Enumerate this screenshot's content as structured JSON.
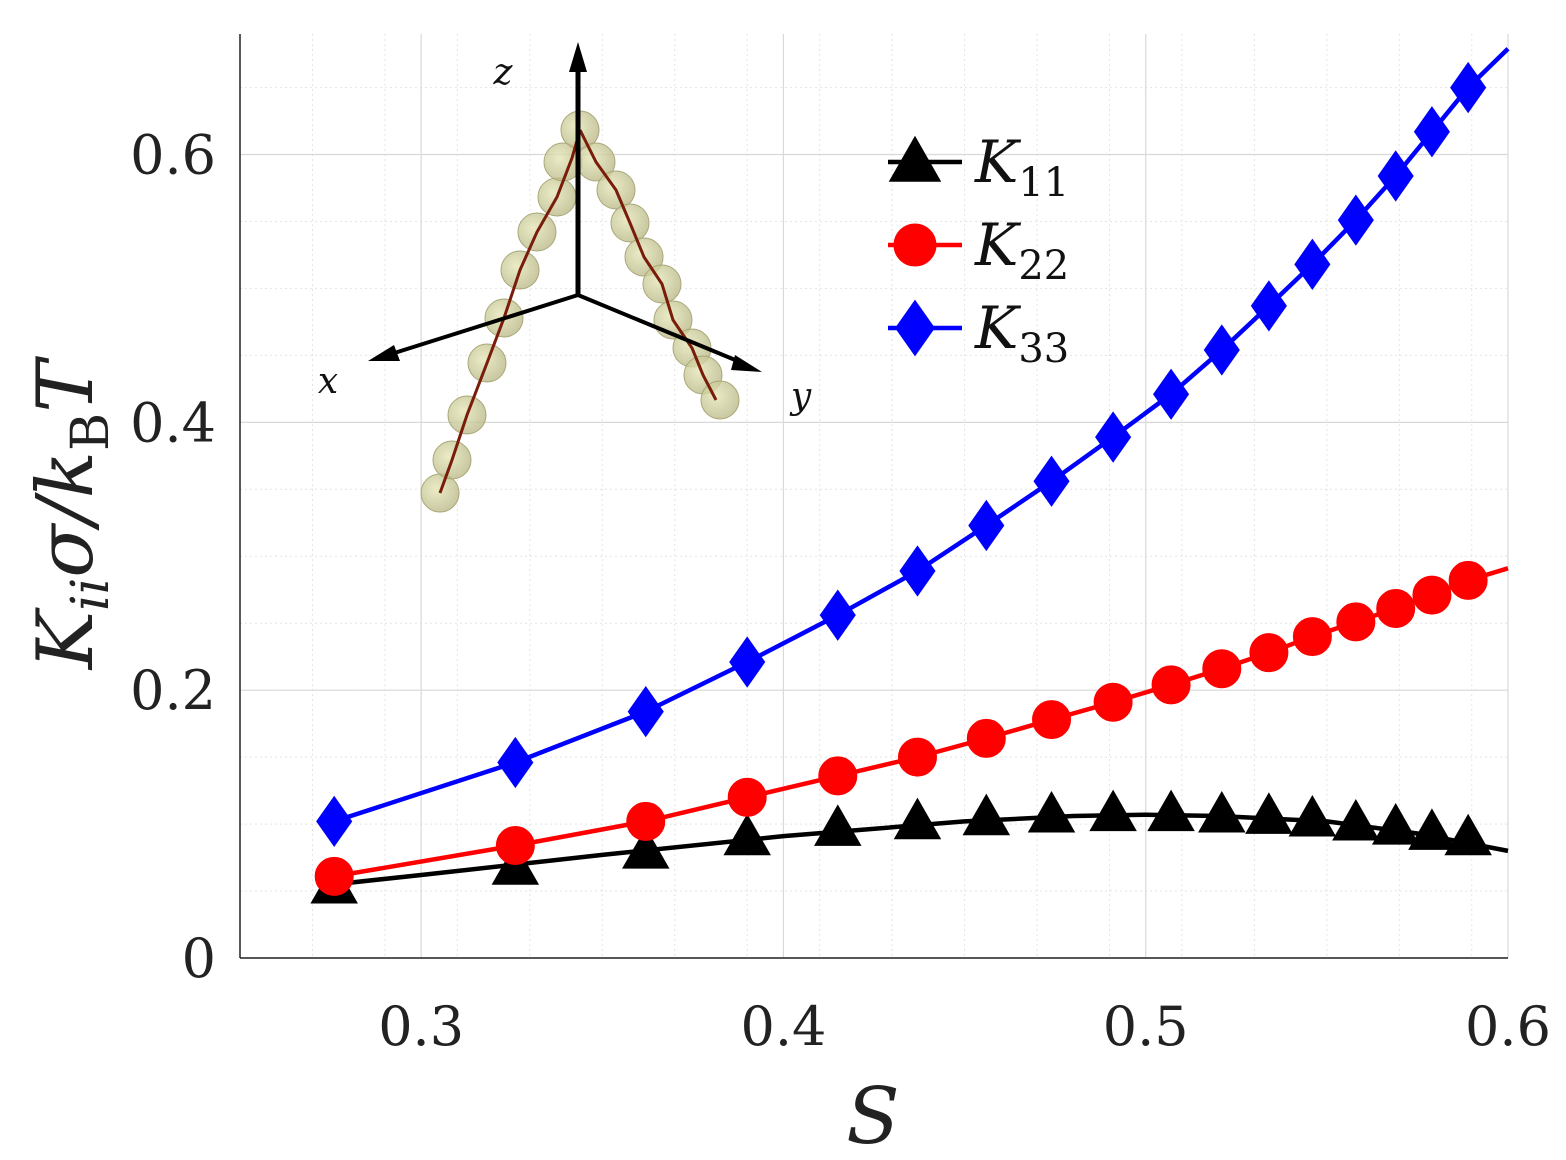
{
  "chart_data": {
    "type": "line",
    "title": "",
    "xlabel": "S",
    "ylabel": {
      "main": "K",
      "sub1": "ii",
      "mid": "σ/k",
      "sub2": "B",
      "end": "T"
    },
    "xlim": [
      0.25,
      0.6
    ],
    "ylim": [
      0,
      0.69
    ],
    "grid": true,
    "legend_position": "top-center",
    "x_ticks": [
      "0.3",
      "0.4",
      "0.5",
      "0.6"
    ],
    "y_ticks": [
      "0",
      "0.2",
      "0.4",
      "0.6"
    ],
    "x_tick_values": [
      0.3,
      0.4,
      0.5,
      0.6
    ],
    "y_tick_values": [
      0,
      0.2,
      0.4,
      0.6
    ],
    "x": [
      0.276,
      0.326,
      0.362,
      0.39,
      0.415,
      0.437,
      0.456,
      0.474,
      0.491,
      0.507,
      0.521,
      0.534,
      0.546,
      0.558,
      0.569,
      0.579,
      0.589
    ],
    "series": [
      {
        "name": "K11",
        "label_main": "K",
        "label_sub": "11",
        "color": "#000000",
        "marker": "triangle",
        "values": [
          0.054,
          0.068,
          0.08,
          0.09,
          0.097,
          0.102,
          0.105,
          0.107,
          0.108,
          0.108,
          0.107,
          0.106,
          0.104,
          0.101,
          0.098,
          0.094,
          0.09
        ],
        "fit_line": [
          [
            0.276,
            0.055
          ],
          [
            0.3,
            0.062
          ],
          [
            0.35,
            0.077
          ],
          [
            0.4,
            0.091
          ],
          [
            0.45,
            0.102
          ],
          [
            0.48,
            0.106
          ],
          [
            0.5,
            0.107
          ],
          [
            0.52,
            0.106
          ],
          [
            0.55,
            0.102
          ],
          [
            0.575,
            0.093
          ],
          [
            0.6,
            0.08
          ]
        ]
      },
      {
        "name": "K22",
        "label_main": "K",
        "label_sub": "22",
        "color": "#ff0000",
        "marker": "circle",
        "values": [
          0.061,
          0.084,
          0.102,
          0.12,
          0.136,
          0.15,
          0.164,
          0.178,
          0.191,
          0.204,
          0.216,
          0.228,
          0.24,
          0.251,
          0.261,
          0.271,
          0.282
        ],
        "fit_line": [
          [
            0.276,
            0.061
          ],
          [
            0.326,
            0.084
          ],
          [
            0.362,
            0.102
          ],
          [
            0.39,
            0.12
          ],
          [
            0.415,
            0.136
          ],
          [
            0.437,
            0.15
          ],
          [
            0.456,
            0.164
          ],
          [
            0.474,
            0.178
          ],
          [
            0.491,
            0.191
          ],
          [
            0.507,
            0.204
          ],
          [
            0.521,
            0.216
          ],
          [
            0.534,
            0.228
          ],
          [
            0.546,
            0.24
          ],
          [
            0.558,
            0.251
          ],
          [
            0.569,
            0.261
          ],
          [
            0.579,
            0.271
          ],
          [
            0.589,
            0.282
          ],
          [
            0.6,
            0.291
          ]
        ]
      },
      {
        "name": "K33",
        "label_main": "K",
        "label_sub": "33",
        "color": "#0000ff",
        "marker": "diamond",
        "values": [
          0.102,
          0.146,
          0.184,
          0.221,
          0.256,
          0.289,
          0.323,
          0.356,
          0.389,
          0.421,
          0.454,
          0.487,
          0.518,
          0.551,
          0.584,
          0.617,
          0.65
        ],
        "fit_line": [
          [
            0.276,
            0.102
          ],
          [
            0.326,
            0.146
          ],
          [
            0.362,
            0.184
          ],
          [
            0.39,
            0.221
          ],
          [
            0.415,
            0.256
          ],
          [
            0.437,
            0.289
          ],
          [
            0.456,
            0.323
          ],
          [
            0.474,
            0.356
          ],
          [
            0.491,
            0.389
          ],
          [
            0.507,
            0.421
          ],
          [
            0.521,
            0.454
          ],
          [
            0.534,
            0.487
          ],
          [
            0.546,
            0.518
          ],
          [
            0.558,
            0.551
          ],
          [
            0.569,
            0.584
          ],
          [
            0.579,
            0.617
          ],
          [
            0.589,
            0.65
          ],
          [
            0.6,
            0.679
          ]
        ]
      }
    ],
    "inset": {
      "description_axes": [
        "x",
        "y",
        "z"
      ]
    }
  }
}
